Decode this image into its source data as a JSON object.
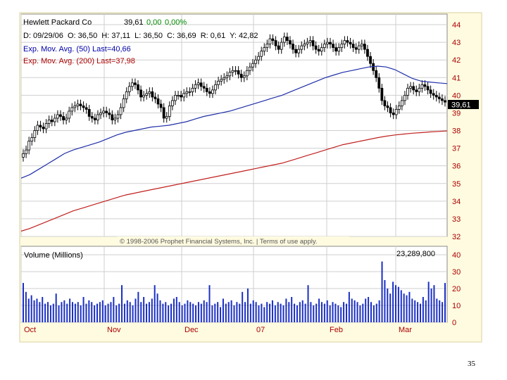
{
  "slide": {
    "page_number": "35"
  },
  "header": {
    "company": "Hewlett Packard Co",
    "price": "39,61",
    "change": "0,00",
    "change_pct": "0,00%",
    "ohlc_line": "D: 09/29/06  O: 36,50  H: 37,11  L: 36,50  C: 36,69  R: 0,61  Y: 42,82",
    "ema50_label": "Exp. Mov. Avg. (50) Last=40,66",
    "ema200_label": "Exp. Mov. Avg. (200) Last=37,98",
    "last_price_tag": "39,61",
    "copyright": "© 1998-2006 Prophet Financial Systems, Inc. | Terms of use apply."
  },
  "volume_panel": {
    "label": "Volume (Millions)",
    "last_volume": "23,289,800"
  },
  "colors": {
    "panel_bg": "#fffbe0",
    "plot_bg": "#ffffff",
    "grid": "#cfcfcf",
    "candle": "#000000",
    "ema50": "#1f2fa8",
    "ema200": "#c0201f",
    "volume": "#1a2fc4",
    "axis_label": "#aa0000",
    "header_blue": "#0000aa",
    "header_red": "#aa0000",
    "header_green": "#008800",
    "tag_bg": "#000000"
  },
  "chart_data": [
    {
      "type": "candlestick",
      "title": "Hewlett Packard Co",
      "ylim": [
        32,
        44.6
      ],
      "y_ticks": [
        "32",
        "33",
        "34",
        "35",
        "36",
        "37",
        "38",
        "39",
        "40",
        "41",
        "42",
        "43",
        "44"
      ],
      "x_ticks": [
        "Oct",
        "Nov",
        "Dec",
        "07",
        "Feb",
        "Mar"
      ],
      "grid": true,
      "close": [
        36.69,
        36.9,
        37.4,
        37.6,
        38.0,
        38.3,
        38.2,
        38.1,
        38.4,
        38.6,
        38.5,
        38.7,
        38.9,
        38.8,
        38.6,
        38.7,
        39.1,
        39.3,
        39.4,
        39.5,
        39.4,
        39.3,
        39.2,
        38.8,
        38.7,
        38.6,
        38.9,
        39.0,
        39.1,
        39.0,
        38.9,
        38.6,
        38.7,
        38.9,
        39.3,
        39.8,
        40.2,
        40.5,
        40.7,
        40.6,
        40.3,
        39.9,
        40.0,
        40.1,
        40.2,
        39.9,
        39.8,
        39.5,
        39.3,
        38.7,
        38.8,
        39.4,
        39.7,
        40.0,
        40.0,
        39.9,
        40.1,
        40.2,
        40.2,
        40.4,
        40.6,
        40.7,
        40.5,
        40.4,
        40.2,
        40.1,
        40.3,
        40.6,
        40.8,
        40.9,
        41.0,
        41.1,
        41.3,
        41.4,
        41.4,
        41.2,
        41.0,
        41.1,
        41.4,
        41.6,
        41.8,
        42.0,
        42.2,
        42.5,
        42.7,
        42.9,
        43.2,
        43.1,
        42.8,
        42.6,
        43.0,
        43.3,
        43.1,
        42.9,
        42.6,
        42.4,
        42.6,
        42.8,
        42.9,
        43.0,
        43.1,
        42.8,
        42.6,
        42.5,
        42.7,
        42.9,
        43.0,
        42.9,
        42.7,
        42.5,
        42.7,
        42.9,
        43.1,
        43.0,
        42.9,
        42.7,
        42.6,
        42.8,
        42.9,
        42.6,
        42.2,
        41.8,
        41.4,
        41.0,
        40.4,
        39.7,
        39.4,
        39.3,
        39.0,
        38.9,
        39.2,
        39.4,
        39.7,
        40.0,
        40.4,
        40.5,
        40.3,
        40.2,
        40.4,
        40.6,
        40.5,
        40.3,
        40.1,
        40.0,
        39.9,
        39.8,
        39.7,
        39.61
      ],
      "series": [
        {
          "name": "Exp. Mov. Avg. (50)",
          "last": 40.66,
          "values": [
            35.3,
            35.5,
            35.8,
            36.1,
            36.4,
            36.7,
            36.9,
            37.05,
            37.2,
            37.35,
            37.55,
            37.75,
            37.9,
            38.0,
            38.1,
            38.2,
            38.25,
            38.3,
            38.4,
            38.5,
            38.65,
            38.8,
            38.9,
            39.0,
            39.1,
            39.25,
            39.4,
            39.55,
            39.7,
            39.85,
            40.0,
            40.2,
            40.4,
            40.6,
            40.8,
            41.0,
            41.15,
            41.3,
            41.4,
            41.5,
            41.6,
            41.65,
            41.6,
            41.45,
            41.2,
            40.95,
            40.8,
            40.75,
            40.7,
            40.66
          ]
        },
        {
          "name": "Exp. Mov. Avg. (200)",
          "last": 37.98,
          "values": [
            32.3,
            32.45,
            32.65,
            32.85,
            33.05,
            33.25,
            33.45,
            33.6,
            33.75,
            33.9,
            34.05,
            34.2,
            34.35,
            34.45,
            34.55,
            34.65,
            34.75,
            34.85,
            34.95,
            35.05,
            35.15,
            35.25,
            35.35,
            35.45,
            35.55,
            35.65,
            35.75,
            35.85,
            35.95,
            36.05,
            36.15,
            36.3,
            36.45,
            36.6,
            36.75,
            36.9,
            37.05,
            37.2,
            37.3,
            37.4,
            37.5,
            37.6,
            37.68,
            37.75,
            37.8,
            37.85,
            37.88,
            37.92,
            37.95,
            37.98
          ]
        }
      ]
    },
    {
      "type": "bar",
      "title": "Volume (Millions)",
      "ylim": [
        0,
        45
      ],
      "y_ticks": [
        "0",
        "10",
        "20",
        "30",
        "40"
      ],
      "x_ticks": [
        "Oct",
        "Nov",
        "Dec",
        "07",
        "Feb",
        "Mar"
      ],
      "values": [
        23.3,
        18,
        14,
        16,
        13,
        14,
        12,
        15,
        11,
        12,
        10,
        11,
        17,
        10,
        12,
        13,
        11,
        14,
        12,
        11,
        12,
        10,
        15,
        11,
        13,
        12,
        10,
        11,
        12,
        13,
        10,
        11,
        12,
        15,
        10,
        11,
        22,
        11,
        13,
        12,
        10,
        14,
        18,
        12,
        15,
        11,
        12,
        14,
        22,
        17,
        13,
        11,
        12,
        10,
        11,
        14,
        15,
        12,
        10,
        11,
        13,
        12,
        11,
        10,
        12,
        11,
        13,
        12,
        22,
        10,
        11,
        12,
        9,
        14,
        11,
        12,
        13,
        10,
        12,
        11,
        18,
        12,
        20,
        11,
        13,
        12,
        10,
        11,
        9,
        12,
        11,
        13,
        10,
        12,
        11,
        10,
        14,
        12,
        15,
        11,
        10,
        12,
        13,
        11,
        22,
        12,
        10,
        11,
        14,
        12,
        11,
        13,
        10,
        12,
        11,
        10,
        9,
        12,
        11,
        18,
        14,
        13,
        12,
        10,
        11,
        14,
        15,
        12,
        10,
        11,
        13,
        36,
        25,
        20,
        17,
        24,
        22,
        21,
        19,
        17,
        16,
        18,
        14,
        13,
        12,
        11,
        15,
        13,
        24,
        20,
        22,
        14,
        13,
        12,
        23.3
      ]
    }
  ]
}
